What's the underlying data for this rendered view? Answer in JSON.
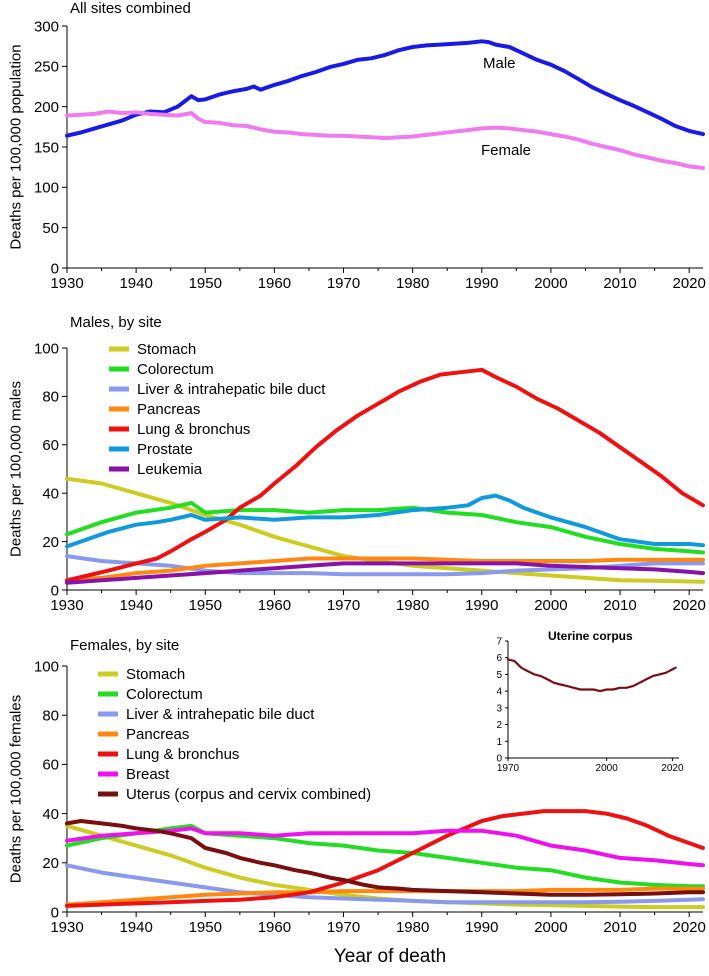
{
  "chart_data": [
    {
      "type": "line",
      "title": "All sites combined",
      "ylabel": "Deaths per 100,000 population",
      "ylim": [
        0,
        300
      ],
      "xlim": [
        1930,
        2022
      ],
      "yticks": [
        "0",
        "50",
        "100",
        "150",
        "200",
        "250",
        "300"
      ],
      "xticks": [
        "1930",
        "1940",
        "1950",
        "1960",
        "1970",
        "1980",
        "1990",
        "2000",
        "2010",
        "2020"
      ],
      "series": [
        {
          "name": "Male",
          "color": "#1a1ae6",
          "label": "Male",
          "x": [
            1930,
            1932,
            1934,
            1936,
            1938,
            1940,
            1942,
            1944,
            1946,
            1948,
            1949,
            1950,
            1952,
            1954,
            1956,
            1957,
            1958,
            1960,
            1962,
            1964,
            1966,
            1968,
            1970,
            1972,
            1974,
            1976,
            1978,
            1980,
            1982,
            1984,
            1986,
            1988,
            1990,
            1991,
            1992,
            1994,
            1996,
            1998,
            2000,
            2002,
            2004,
            2006,
            2008,
            2010,
            2012,
            2014,
            2016,
            2018,
            2020,
            2022
          ],
          "y": [
            164,
            168,
            173,
            178,
            183,
            190,
            194,
            193,
            200,
            213,
            208,
            209,
            215,
            219,
            222,
            225,
            221,
            227,
            232,
            238,
            243,
            249,
            253,
            258,
            260,
            264,
            270,
            274,
            276,
            277,
            278,
            279,
            281,
            280,
            277,
            274,
            266,
            258,
            252,
            244,
            234,
            224,
            216,
            208,
            201,
            193,
            185,
            176,
            170,
            166
          ]
        },
        {
          "name": "Female",
          "color": "#f07af0",
          "label": "Female",
          "x": [
            1930,
            1932,
            1934,
            1936,
            1938,
            1940,
            1942,
            1944,
            1946,
            1948,
            1949,
            1950,
            1952,
            1954,
            1956,
            1958,
            1960,
            1962,
            1964,
            1966,
            1968,
            1970,
            1972,
            1974,
            1976,
            1978,
            1980,
            1982,
            1984,
            1986,
            1988,
            1990,
            1992,
            1994,
            1996,
            1998,
            2000,
            2002,
            2004,
            2006,
            2008,
            2010,
            2012,
            2014,
            2016,
            2018,
            2020,
            2022
          ],
          "y": [
            189,
            190,
            191,
            194,
            192,
            193,
            191,
            190,
            189,
            192,
            185,
            181,
            180,
            177,
            176,
            172,
            169,
            168,
            166,
            165,
            164,
            164,
            163,
            162,
            161,
            162,
            163,
            165,
            167,
            169,
            171,
            173,
            174,
            173,
            171,
            169,
            166,
            163,
            159,
            154,
            150,
            146,
            141,
            137,
            133,
            130,
            126,
            124
          ]
        }
      ]
    },
    {
      "type": "line",
      "title": "Males, by site",
      "ylabel": "Deaths per 100,000 males",
      "ylim": [
        0,
        100
      ],
      "xlim": [
        1930,
        2022
      ],
      "yticks": [
        "0",
        "20",
        "40",
        "60",
        "80",
        "100"
      ],
      "xticks": [
        "1930",
        "1940",
        "1950",
        "1960",
        "1970",
        "1980",
        "1990",
        "2000",
        "2010",
        "2020"
      ],
      "legend": "top-left",
      "series": [
        {
          "name": "Stomach",
          "color": "#cccc22",
          "x": [
            1930,
            1935,
            1940,
            1945,
            1950,
            1955,
            1960,
            1965,
            1970,
            1975,
            1980,
            1985,
            1990,
            1995,
            2000,
            2005,
            2010,
            2015,
            2020,
            2022
          ],
          "y": [
            46,
            44,
            40,
            36,
            31,
            27,
            22,
            18,
            14,
            12,
            10,
            9,
            8,
            7,
            6,
            5,
            4,
            3.8,
            3.5,
            3.4
          ]
        },
        {
          "name": "Colorectum",
          "color": "#22dd22",
          "x": [
            1930,
            1935,
            1940,
            1945,
            1948,
            1950,
            1955,
            1960,
            1965,
            1970,
            1975,
            1980,
            1985,
            1990,
            1995,
            2000,
            2005,
            2010,
            2015,
            2020,
            2022
          ],
          "y": [
            23,
            28,
            32,
            34,
            36,
            32,
            33,
            33,
            32,
            33,
            33,
            34,
            32,
            31,
            28,
            26,
            22,
            19,
            17,
            16,
            15.5
          ]
        },
        {
          "name": "Liver & intrahepatic bile duct",
          "color": "#8899ee",
          "x": [
            1930,
            1935,
            1940,
            1945,
            1950,
            1955,
            1960,
            1965,
            1970,
            1975,
            1980,
            1985,
            1990,
            1995,
            2000,
            2005,
            2010,
            2015,
            2020,
            2022
          ],
          "y": [
            14,
            12,
            11,
            10,
            8,
            7,
            7,
            7,
            6.5,
            6.5,
            6.5,
            6.5,
            7,
            8,
            8.5,
            9,
            10,
            11,
            11,
            11
          ]
        },
        {
          "name": "Pancreas",
          "color": "#ff8811",
          "x": [
            1930,
            1935,
            1940,
            1945,
            1950,
            1955,
            1960,
            1965,
            1970,
            1975,
            1980,
            1985,
            1990,
            1995,
            2000,
            2005,
            2010,
            2015,
            2020,
            2022
          ],
          "y": [
            4,
            5,
            7,
            8,
            10,
            11,
            12,
            13,
            13,
            13,
            13,
            12.5,
            12,
            12,
            12,
            12,
            12.5,
            12.5,
            12.5,
            12.5
          ]
        },
        {
          "name": "Lung & bronchus",
          "color": "#ee1111",
          "x": [
            1930,
            1933,
            1936,
            1940,
            1943,
            1945,
            1948,
            1950,
            1953,
            1955,
            1958,
            1960,
            1963,
            1966,
            1969,
            1972,
            1975,
            1978,
            1981,
            1984,
            1987,
            1990,
            1992,
            1995,
            1998,
            2001,
            2004,
            2007,
            2010,
            2013,
            2016,
            2019,
            2022
          ],
          "y": [
            4,
            6,
            8,
            11,
            13,
            16,
            21,
            24,
            29,
            34,
            39,
            44,
            51,
            59,
            66,
            72,
            77,
            82,
            86,
            89,
            90,
            91,
            88,
            84,
            79,
            75,
            70,
            65,
            59,
            53,
            47,
            40,
            35
          ]
        },
        {
          "name": "Prostate",
          "color": "#1199dd",
          "x": [
            1930,
            1933,
            1936,
            1940,
            1943,
            1945,
            1948,
            1950,
            1955,
            1960,
            1965,
            1970,
            1975,
            1980,
            1985,
            1988,
            1990,
            1992,
            1994,
            1996,
            1998,
            2000,
            2005,
            2010,
            2015,
            2020,
            2022
          ],
          "y": [
            18,
            21,
            24,
            27,
            28,
            29,
            31,
            29,
            30,
            29,
            30,
            30,
            31,
            33,
            34,
            35,
            38,
            39,
            37,
            34,
            32,
            30,
            26,
            21,
            19,
            19,
            18.5
          ]
        },
        {
          "name": "Leukemia",
          "color": "#8811aa",
          "x": [
            1930,
            1935,
            1940,
            1945,
            1950,
            1955,
            1960,
            1965,
            1970,
            1975,
            1980,
            1985,
            1990,
            1995,
            2000,
            2005,
            2010,
            2015,
            2020,
            2022
          ],
          "y": [
            3,
            4,
            5,
            6,
            7,
            8,
            9,
            10,
            11,
            11,
            11,
            11,
            11,
            11,
            10,
            9.5,
            9,
            8.5,
            7.5,
            7
          ]
        }
      ]
    },
    {
      "type": "line",
      "title": "Females, by site",
      "ylabel": "Deaths per 100,000 females",
      "xlabel": "Year of death",
      "ylim": [
        0,
        100
      ],
      "xlim": [
        1930,
        2022
      ],
      "yticks": [
        "0",
        "20",
        "40",
        "60",
        "80",
        "100"
      ],
      "xticks": [
        "1930",
        "1940",
        "1950",
        "1960",
        "1970",
        "1980",
        "1990",
        "2000",
        "2010",
        "2020"
      ],
      "legend": "top-left",
      "series": [
        {
          "name": "Stomach",
          "color": "#cccc22",
          "x": [
            1930,
            1935,
            1940,
            1945,
            1950,
            1955,
            1960,
            1965,
            1970,
            1975,
            1980,
            1985,
            1990,
            1995,
            2000,
            2005,
            2010,
            2015,
            2020,
            2022
          ],
          "y": [
            35,
            31,
            27,
            23,
            18,
            14,
            11,
            9,
            7,
            5.5,
            4.5,
            4,
            3.5,
            3,
            2.8,
            2.5,
            2.2,
            2,
            2,
            2
          ]
        },
        {
          "name": "Colorectum",
          "color": "#22dd22",
          "x": [
            1930,
            1935,
            1940,
            1945,
            1948,
            1950,
            1955,
            1960,
            1965,
            1970,
            1975,
            1980,
            1985,
            1990,
            1995,
            2000,
            2005,
            2010,
            2015,
            2020,
            2022
          ],
          "y": [
            27,
            30,
            32,
            34,
            35,
            32,
            31,
            30,
            28,
            27,
            25,
            24,
            22,
            20,
            18,
            17,
            14,
            12,
            11,
            10.5,
            10.5
          ]
        },
        {
          "name": "Liver & intrahepatic bile duct",
          "color": "#8899ee",
          "x": [
            1930,
            1935,
            1940,
            1945,
            1950,
            1955,
            1960,
            1965,
            1970,
            1975,
            1980,
            1985,
            1990,
            1995,
            2000,
            2005,
            2010,
            2015,
            2020,
            2022
          ],
          "y": [
            19,
            16,
            14,
            12,
            10,
            8,
            7,
            6,
            5.5,
            5,
            4.5,
            4,
            4,
            4,
            4,
            4,
            4.2,
            4.5,
            5,
            5.2
          ]
        },
        {
          "name": "Pancreas",
          "color": "#ff8811",
          "x": [
            1930,
            1935,
            1940,
            1945,
            1950,
            1955,
            1960,
            1965,
            1970,
            1975,
            1980,
            1985,
            1990,
            1995,
            2000,
            2005,
            2010,
            2015,
            2020,
            2022
          ],
          "y": [
            3,
            4,
            5,
            6,
            7,
            7.5,
            8,
            8,
            8.5,
            8.5,
            8.5,
            8.5,
            8.5,
            8.5,
            9,
            9,
            9,
            9.5,
            9.5,
            9.5
          ]
        },
        {
          "name": "Lung & bronchus",
          "color": "#ee1111",
          "x": [
            1930,
            1935,
            1940,
            1945,
            1950,
            1955,
            1960,
            1965,
            1970,
            1975,
            1980,
            1985,
            1990,
            1993,
            1996,
            1999,
            2002,
            2005,
            2008,
            2011,
            2014,
            2017,
            2020,
            2022
          ],
          "y": [
            2.5,
            3,
            3.5,
            4,
            4.5,
            5,
            6,
            8,
            12,
            17,
            24,
            31,
            37,
            39,
            40,
            41,
            41,
            41,
            40,
            38,
            35,
            31,
            28,
            26
          ]
        },
        {
          "name": "Breast",
          "color": "#ee11ee",
          "x": [
            1930,
            1935,
            1940,
            1945,
            1948,
            1950,
            1955,
            1960,
            1965,
            1970,
            1975,
            1980,
            1985,
            1990,
            1995,
            2000,
            2005,
            2010,
            2015,
            2020,
            2022
          ],
          "y": [
            29,
            31,
            32,
            33,
            34,
            32,
            32,
            31,
            32,
            32,
            32,
            32,
            33,
            33,
            31,
            27,
            25,
            22,
            21,
            19.5,
            19
          ]
        },
        {
          "name": "Uterus (corpus and cervix combined)",
          "color": "#7a0f0f",
          "x": [
            1930,
            1932,
            1935,
            1938,
            1940,
            1943,
            1945,
            1948,
            1950,
            1953,
            1955,
            1958,
            1960,
            1963,
            1965,
            1968,
            1970,
            1973,
            1975,
            1978,
            1980,
            1985,
            1990,
            1995,
            2000,
            2005,
            2010,
            2015,
            2020,
            2022
          ],
          "y": [
            36,
            37,
            36,
            35,
            34,
            33,
            32,
            30,
            26,
            24,
            22,
            20,
            19,
            17,
            16,
            14,
            13,
            11,
            10,
            9.5,
            9,
            8.5,
            8,
            7.5,
            7,
            7,
            7.2,
            7.5,
            8,
            8
          ]
        }
      ]
    },
    {
      "type": "line",
      "title": "Uterine corpus",
      "ylim": [
        0,
        7
      ],
      "xlim": [
        1970,
        2022
      ],
      "yticks": [
        "0",
        "1",
        "2",
        "3",
        "4",
        "5",
        "6",
        "7"
      ],
      "xticks": [
        "1970",
        "2000",
        "2020"
      ],
      "series": [
        {
          "name": "Uterine corpus",
          "color": "#7a0f0f",
          "x": [
            1970,
            1972,
            1974,
            1976,
            1978,
            1980,
            1982,
            1984,
            1986,
            1988,
            1990,
            1992,
            1994,
            1996,
            1998,
            2000,
            2002,
            2004,
            2006,
            2008,
            2010,
            2012,
            2014,
            2016,
            2018,
            2020,
            2021
          ],
          "y": [
            5.9,
            5.8,
            5.4,
            5.2,
            5.0,
            4.9,
            4.7,
            4.5,
            4.4,
            4.3,
            4.2,
            4.1,
            4.1,
            4.1,
            4.0,
            4.1,
            4.1,
            4.2,
            4.2,
            4.3,
            4.5,
            4.7,
            4.9,
            5.0,
            5.1,
            5.3,
            5.4
          ]
        }
      ]
    }
  ]
}
